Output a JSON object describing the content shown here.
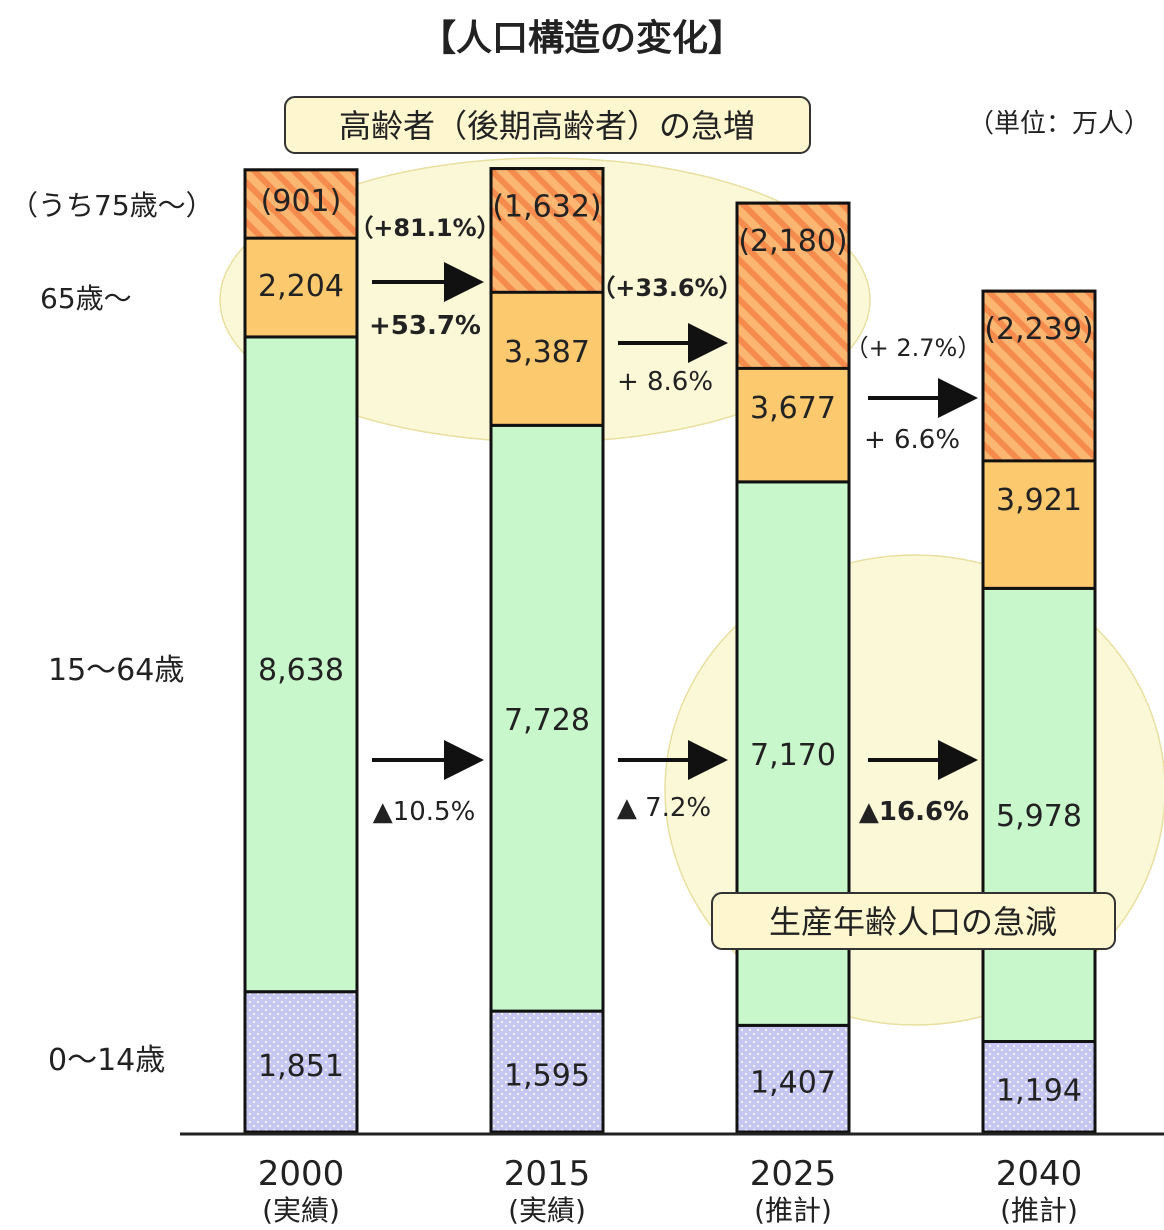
{
  "chart_data": {
    "type": "bar",
    "stacked": true,
    "title": "【人口構造の変化】",
    "unit_label": "（単位：万人）",
    "categories": [
      {
        "year": "2000",
        "note": "(実績)"
      },
      {
        "year": "2015",
        "note": "(実績)"
      },
      {
        "year": "2025",
        "note": "(推計)"
      },
      {
        "year": "2040",
        "note": "(推計)"
      }
    ],
    "series": [
      {
        "name": "0〜14歳",
        "values": [
          1851,
          1595,
          1407,
          1194
        ],
        "labels": [
          "1,851",
          "1,595",
          "1,407",
          "1,194"
        ],
        "color": "#c6c6f2"
      },
      {
        "name": "15〜64歳",
        "values": [
          8638,
          7728,
          7170,
          5978
        ],
        "labels": [
          "8,638",
          "7,728",
          "7,170",
          "5,978"
        ],
        "color": "#c8f7cc"
      },
      {
        "name": "65歳〜",
        "values": [
          2204,
          3387,
          3677,
          3921
        ],
        "labels": [
          "2,204",
          "3,387",
          "3,677",
          "3,921"
        ],
        "color": "#fcc96e"
      }
    ],
    "sub_series": {
      "name": "（うち75歳〜）",
      "values": [
        901,
        1632,
        2180,
        2239
      ],
      "labels": [
        "(901)",
        "(1,632)",
        "(2,180)",
        "(2,239)"
      ],
      "color": "#f4a05a"
    },
    "changes": {
      "age75": [
        "（+81.1%）",
        "（+33.6%）",
        "（+ 2.7%）"
      ],
      "age65": [
        "+53.7%",
        "+ 8.6%",
        "+ 6.6%"
      ],
      "working": [
        "▲10.5%",
        "▲ 7.2%",
        "▲16.6%"
      ]
    },
    "callouts": {
      "elderly": "高齢者（後期高齢者）の急増",
      "working": "生産年齢人口の急減"
    },
    "colors": {
      "accent_text": "#111111",
      "ellipse_fill": "#fbf8d8",
      "callout_fill": "#fdf6cf"
    }
  }
}
